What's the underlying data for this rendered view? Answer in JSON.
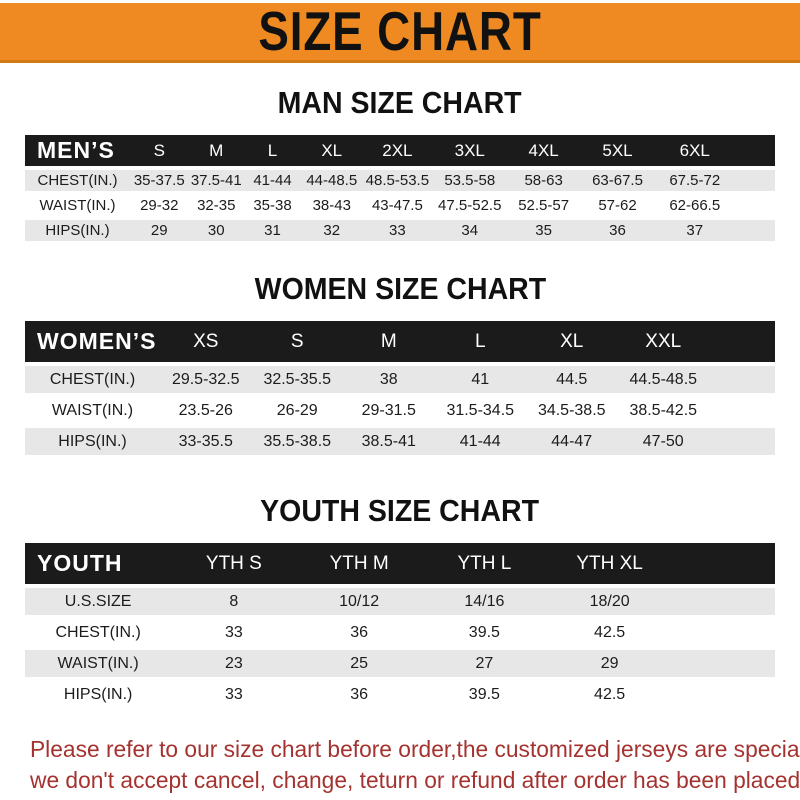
{
  "banner": {
    "title": "SIZE CHART"
  },
  "colors": {
    "banner_orange": "#ee8a21",
    "header_bar_black": "#1b1b1b",
    "row_stripe_gray": "#e7e7e7",
    "note_red": "#a43330"
  },
  "sections": [
    {
      "id": "men",
      "title": "MAN SIZE CHART",
      "table": {
        "header_label": "MEN’S",
        "columns": [
          "S",
          "M",
          "L",
          "XL",
          "2XL",
          "3XL",
          "4XL",
          "5XL",
          "6XL"
        ],
        "rows": [
          {
            "label": "CHEST(IN.)",
            "values": [
              "35-37.5",
              "37.5-41",
              "41-44",
              "44-48.5",
              "48.5-53.5",
              "53.5-58",
              "58-63",
              "63-67.5",
              "67.5-72"
            ]
          },
          {
            "label": "WAIST(IN.)",
            "values": [
              "29-32",
              "32-35",
              "35-38",
              "38-43",
              "43-47.5",
              "47.5-52.5",
              "52.5-57",
              "57-62",
              "62-66.5"
            ]
          },
          {
            "label": "HIPS(IN.)",
            "values": [
              "29",
              "30",
              "31",
              "32",
              "33",
              "34",
              "35",
              "36",
              "37"
            ]
          }
        ]
      }
    },
    {
      "id": "women",
      "title": "WOMEN SIZE CHART",
      "table": {
        "header_label": "WOMEN’S",
        "columns": [
          "XS",
          "S",
          "M",
          "L",
          "XL",
          "XXL"
        ],
        "rows": [
          {
            "label": "CHEST(IN.)",
            "values": [
              "29.5-32.5",
              "32.5-35.5",
              "38",
              "41",
              "44.5",
              "44.5-48.5"
            ]
          },
          {
            "label": "WAIST(IN.)",
            "values": [
              "23.5-26",
              "26-29",
              "29-31.5",
              "31.5-34.5",
              "34.5-38.5",
              "38.5-42.5"
            ]
          },
          {
            "label": "HIPS(IN.)",
            "values": [
              "33-35.5",
              "35.5-38.5",
              "38.5-41",
              "41-44",
              "44-47",
              "47-50"
            ]
          }
        ]
      }
    },
    {
      "id": "youth",
      "title": "YOUTH SIZE CHART",
      "table": {
        "header_label": "YOUTH",
        "columns": [
          "YTH S",
          "YTH M",
          "YTH L",
          "YTH XL"
        ],
        "rows": [
          {
            "label": "U.S.SIZE",
            "values": [
              "8",
              "10/12",
              "14/16",
              "18/20"
            ]
          },
          {
            "label": "CHEST(IN.)",
            "values": [
              "33",
              "36",
              "39.5",
              "42.5"
            ]
          },
          {
            "label": "WAIST(IN.)",
            "values": [
              "23",
              "25",
              "27",
              "29"
            ]
          },
          {
            "label": "HIPS(IN.)",
            "values": [
              "33",
              "36",
              "39.5",
              "42.5"
            ]
          }
        ]
      }
    }
  ],
  "footer": {
    "line1": "Please refer to our size chart before order,the customized jerseys are special products,",
    "line2": "we don't accept cancel, change, teturn or refund after order has been placed!"
  }
}
